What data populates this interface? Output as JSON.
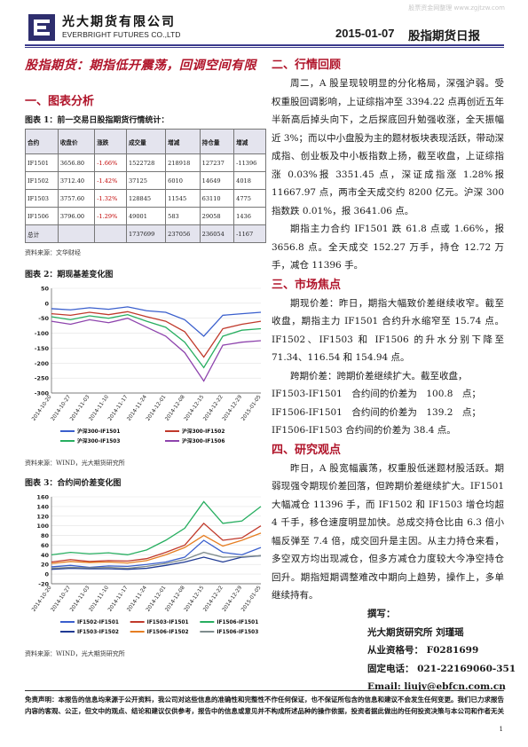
{
  "watermark": "股票资金网整理 www.zgjtzw.com",
  "header": {
    "company_cn": "光大期货有限公司",
    "company_en": "EVERBRIGHT FUTURES CO.,LTD",
    "date": "2015-01-07",
    "report_title": "股指期货日报"
  },
  "headline": "股指期货：期指低开震荡，回调空间有限",
  "section1": {
    "title": "一、图表分析",
    "table1": {
      "caption": "图表 1：前一交易日股指期货行情统计：",
      "headers": [
        "合约",
        "收盘价",
        "涨跌",
        "成交量",
        "增减",
        "持仓量",
        "增减"
      ],
      "rows": [
        [
          "IF1501",
          "3656.80",
          "-1.66%",
          "1522728",
          "218918",
          "127237",
          "-11396"
        ],
        [
          "IF1502",
          "3712.40",
          "-1.42%",
          "37125",
          "6010",
          "14649",
          "4018"
        ],
        [
          "IF1503",
          "3757.60",
          "-1.32%",
          "128845",
          "11545",
          "63110",
          "4775"
        ],
        [
          "IF1506",
          "3796.00",
          "-1.29%",
          "49001",
          "583",
          "29058",
          "1436"
        ]
      ],
      "total": [
        "总计",
        "",
        "",
        "1737699",
        "237056",
        "236054",
        "-1167"
      ],
      "source": "资料来源：文华财经"
    },
    "chart2": {
      "caption": "图表 2：期现基差变化图",
      "source": "资料来源：WIND，光大期货研究所"
    },
    "chart3": {
      "caption": "图表 3：合约间价差变化图",
      "source": "资料来源：WIND，光大期货研究所"
    }
  },
  "chart_data": [
    {
      "type": "line",
      "title": "图表 2：期现基差变化图",
      "x": [
        "2014-10-20",
        "2014-10-27",
        "2014-11-03",
        "2014-11-10",
        "2014-11-17",
        "2014-11-24",
        "2014-12-01",
        "2014-12-08",
        "2014-12-15",
        "2014-12-22",
        "2014-12-29",
        "2015-01-05"
      ],
      "ylim": [
        -300,
        50
      ],
      "yticks": [
        -300,
        -250,
        -200,
        -150,
        -100,
        -50,
        0,
        50
      ],
      "series": [
        {
          "name": "沪深300-IF1501",
          "color": "#3a5fcd",
          "values": [
            -18,
            -22,
            -15,
            -20,
            -12,
            -25,
            -30,
            -55,
            -110,
            -40,
            -35,
            -30
          ]
        },
        {
          "name": "沪深300-IF1502",
          "color": "#c0392b",
          "values": [
            -35,
            -40,
            -30,
            -38,
            -28,
            -45,
            -60,
            -95,
            -180,
            -85,
            -70,
            -60
          ]
        },
        {
          "name": "沪深300-IF1503",
          "color": "#27ae60",
          "values": [
            -45,
            -55,
            -42,
            -50,
            -38,
            -60,
            -80,
            -130,
            -215,
            -110,
            -90,
            -85
          ]
        },
        {
          "name": "沪深300-IF1506",
          "color": "#8e44ad",
          "values": [
            -60,
            -70,
            -55,
            -65,
            -50,
            -80,
            -110,
            -165,
            -260,
            -140,
            -130,
            -125
          ]
        }
      ]
    },
    {
      "type": "line",
      "title": "图表 3：合约间价差变化图",
      "x": [
        "2014-10-20",
        "2014-10-27",
        "2014-11-03",
        "2014-11-10",
        "2014-11-17",
        "2014-11-24",
        "2014-12-01",
        "2014-12-08",
        "2014-12-15",
        "2014-12-22",
        "2014-12-29",
        "2015-01-05"
      ],
      "ylim": [
        -20,
        160
      ],
      "yticks": [
        -20,
        0,
        20,
        40,
        60,
        80,
        100,
        120,
        140,
        160
      ],
      "series": [
        {
          "name": "IF1502-IF1501",
          "color": "#3a5fcd",
          "values": [
            15,
            18,
            14,
            17,
            16,
            20,
            25,
            35,
            70,
            45,
            40,
            55
          ]
        },
        {
          "name": "IF1503-IF1501",
          "color": "#c0392b",
          "values": [
            25,
            30,
            26,
            28,
            27,
            32,
            45,
            60,
            105,
            70,
            75,
            100
          ]
        },
        {
          "name": "IF1506-IF1501",
          "color": "#27ae60",
          "values": [
            40,
            45,
            42,
            44,
            40,
            50,
            70,
            95,
            150,
            105,
            110,
            140
          ]
        },
        {
          "name": "IF1503-IF1502",
          "color": "#1f3a93",
          "values": [
            10,
            12,
            11,
            11,
            10,
            12,
            18,
            25,
            35,
            25,
            35,
            38
          ]
        },
        {
          "name": "IF1506-IF1502",
          "color": "#e67e22",
          "values": [
            22,
            26,
            24,
            25,
            23,
            28,
            40,
            55,
            80,
            58,
            70,
            85
          ]
        },
        {
          "name": "IF1506-IF1503",
          "color": "#7f8c8d",
          "values": [
            12,
            14,
            13,
            14,
            12,
            16,
            22,
            30,
            45,
            35,
            36,
            38
          ]
        }
      ]
    }
  ],
  "section2": {
    "title": "二、行情回顾",
    "p1": "周二，A 股呈现较明显的分化格局，深强沪弱。受权重股回调影响，上证综指冲至 3394.22 点再创近五年半新高后掉头向下，之后探底回升勉强收涨，全天振幅近 3%；而以中小盘股为主的题材板块表现活跃，带动深成指、创业板及中小板指数上扬，截至收盘，上证综指涨 0.03%报 3351.45 点，深证成指涨 1.28%报 11667.97 点，两市全天成交约 8200 亿元。沪深 300 指数跌 0.01%，报 3641.06 点。",
    "p2": "期指主力合约 IF1501 跌 61.8 点或 1.66%，报 3656.8 点。全天成交 152.27 万手，持仓 12.72 万手，减仓 11396 手。"
  },
  "section3": {
    "title": "三、市场焦点",
    "p1": "期现价差：昨日，期指大幅致价差继续收窄。截至收盘，期指主力 IF1501 合约升水缩窄至 15.74 点。IF1502、IF1503 和 IF1506 的升水分别下降至 71.34、116.54 和 154.94 点。",
    "p2": "跨期价差：跨期价差继续扩大。截至收盘，",
    "l1": "IF1503-IF1501　合约间的价差为　100.8　点；",
    "l2": "IF1506-IF1501　合约间的价差为　139.2　点；",
    "l3": "IF1506-IF1503 合约间的价差为 38.4 点。"
  },
  "section4": {
    "title": "四、研究观点",
    "p1": "昨日，A 股宽幅震荡，权重股低迷题材股活跃。期弱现强令期现价差回落，但跨期价差继续扩大。IF1501 大幅减仓 11396 手，而 IF1502 和 IF1503 增仓均超 4 千手，移仓速度明显加快。总成交持仓比由 6.3 倍小幅反弹至 7.4 倍，成交回升是主因。从主力持仓来看，多空双方均出现减仓，但多方减仓力度较大今净空持仓回升。期指短期调整难改中期向上趋势，操作上，多单继续持有。"
  },
  "author": {
    "label": "撰写：",
    "name": "光大期货研究所 刘瑾瑶",
    "cert": "从业资格号： F0281699",
    "phone": "固定电话： 021-22169060-351",
    "email": "Email:  liujy@ebfcn.com.cn"
  },
  "disclaimer": "免责声明：本报告的信息均来源于公开资料，我公司对这些信息的准确性和完整性不作任何保证，也不保证所包含的信息和建议不会发生任何变更。我们已力求报告内容的客观、公正，但文中的观点、结论和建议仅供参考，报告中的信息或意见并不构成所述品种的操作依据，投资者据此做出的任何投资决策与本公司和作者无关",
  "page_number": "1"
}
